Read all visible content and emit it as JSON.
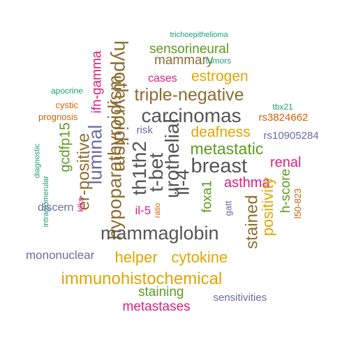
{
  "palette": {
    "brown": "#8c6d31",
    "gray": "#555555",
    "green": "#5c9a1e",
    "orange": "#e2a400",
    "pink": "#dd1f78",
    "purple": "#6a6aa8",
    "teal": "#1b9e77",
    "rust": "#d95f02"
  },
  "words": [
    {
      "text": "trichoepithelioma",
      "color": "teal"
    },
    {
      "text": "hypothyroidism",
      "color": "brown"
    },
    {
      "text": "sensorineural",
      "color": "green"
    },
    {
      "text": "mammary",
      "color": "brown"
    },
    {
      "text": "tumors",
      "color": "teal"
    },
    {
      "text": "ifn-gamma",
      "color": "pink"
    },
    {
      "text": "estrogen",
      "color": "orange"
    },
    {
      "text": "cases",
      "color": "pink"
    },
    {
      "text": "apocrine",
      "color": "teal"
    },
    {
      "text": "triple-negative",
      "color": "brown"
    },
    {
      "text": "cystic",
      "color": "rust"
    },
    {
      "text": "prognosis",
      "color": "rust"
    },
    {
      "text": "tbx21",
      "color": "teal"
    },
    {
      "text": "carcinomas",
      "color": "gray"
    },
    {
      "text": "rs3824662",
      "color": "rust"
    },
    {
      "text": "risk",
      "color": "purple"
    },
    {
      "text": "deafness",
      "color": "orange"
    },
    {
      "text": "rs10905284",
      "color": "purple"
    },
    {
      "text": "gcdfp15",
      "color": "green"
    },
    {
      "text": "luminal",
      "color": "purple"
    },
    {
      "text": "diagnostic",
      "color": "teal"
    },
    {
      "text": "er-positive",
      "color": "brown"
    },
    {
      "text": "hypoparathyroidism",
      "color": "brown"
    },
    {
      "text": "th1th2",
      "color": "gray"
    },
    {
      "text": "t-bet",
      "color": "gray"
    },
    {
      "text": "urothelial",
      "color": "gray"
    },
    {
      "text": "il-4",
      "color": "gray"
    },
    {
      "text": "metastatic",
      "color": "green"
    },
    {
      "text": "breast",
      "color": "gray"
    },
    {
      "text": "renal",
      "color": "pink"
    },
    {
      "text": "intraglomerular",
      "color": "teal"
    },
    {
      "text": "asthma",
      "color": "pink"
    },
    {
      "text": "h-score",
      "color": "green"
    },
    {
      "text": "discern",
      "color": "purple"
    },
    {
      "text": "klks",
      "color": "pink"
    },
    {
      "text": "foxa1",
      "color": "green"
    },
    {
      "text": "gatt",
      "color": "purple"
    },
    {
      "text": "positivity",
      "color": "orange"
    },
    {
      "text": "l50-823",
      "color": "rust"
    },
    {
      "text": "il-5",
      "color": "pink"
    },
    {
      "text": "ratio",
      "color": "rust"
    },
    {
      "text": "stained",
      "color": "brown"
    },
    {
      "text": "mammaglobin",
      "color": "gray"
    },
    {
      "text": "mononuclear",
      "color": "purple"
    },
    {
      "text": "helper",
      "color": "orange"
    },
    {
      "text": "cytokine",
      "color": "orange"
    },
    {
      "text": "immunohistochemical",
      "color": "orange"
    },
    {
      "text": "staining",
      "color": "green"
    },
    {
      "text": "sensitivities",
      "color": "purple"
    },
    {
      "text": "metastases",
      "color": "pink"
    }
  ]
}
